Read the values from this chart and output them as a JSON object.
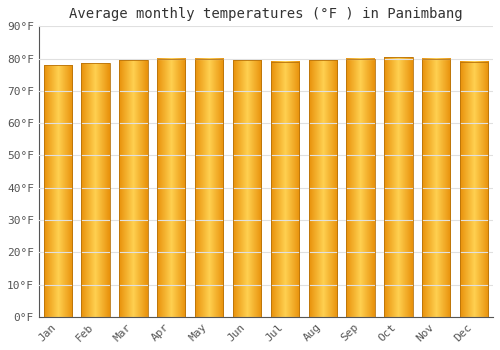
{
  "title": "Average monthly temperatures (°F ) in Panimbang",
  "months": [
    "Jan",
    "Feb",
    "Mar",
    "Apr",
    "May",
    "Jun",
    "Jul",
    "Aug",
    "Sep",
    "Oct",
    "Nov",
    "Dec"
  ],
  "values": [
    78,
    78.5,
    79.5,
    80,
    80,
    79.5,
    79,
    79.5,
    80,
    80.5,
    80,
    79
  ],
  "ylim": [
    0,
    90
  ],
  "yticks": [
    0,
    10,
    20,
    30,
    40,
    50,
    60,
    70,
    80,
    90
  ],
  "ytick_labels": [
    "0°F",
    "10°F",
    "20°F",
    "30°F",
    "40°F",
    "50°F",
    "60°F",
    "70°F",
    "80°F",
    "90°F"
  ],
  "bar_color_left": "#E8900A",
  "bar_color_center": "#FFD050",
  "bar_color_right": "#E8900A",
  "bar_edge_color": "#B8720A",
  "background_color": "#FFFFFF",
  "grid_color": "#E0E0E0",
  "title_fontsize": 10,
  "tick_fontsize": 8,
  "font_family": "monospace"
}
